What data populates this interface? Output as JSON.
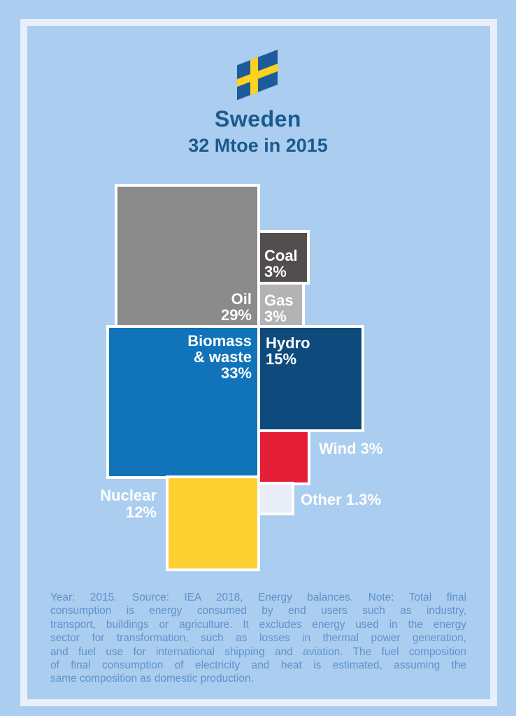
{
  "page": {
    "background_color": "#abcdf0",
    "frame_color": "#e8effb"
  },
  "header": {
    "flag_icon": "sweden-flag-icon",
    "flag_blue": "#1e5b9c",
    "flag_yellow": "#fcd21c",
    "title": "Sweden",
    "subtitle": "32 Mtoe in 2015",
    "title_color": "#1a5a8c"
  },
  "chart_data": {
    "type": "treemap",
    "title": "Sweden",
    "subtitle": "32 Mtoe in 2015",
    "total_value": 32,
    "unit": "Mtoe",
    "year": 2015,
    "block_border_color": "#ffffff",
    "label_text_color": "#ffffff",
    "series": [
      {
        "name": "Oil",
        "value_pct": 29,
        "color": "#8b8b8b",
        "label_lines": [
          "Oil",
          "29%"
        ],
        "label_position": "inside-bottom-right"
      },
      {
        "name": "Coal",
        "value_pct": 3,
        "color": "#524e4f",
        "label_lines": [
          "Coal",
          "3%"
        ],
        "label_position": "inside-bottom-left"
      },
      {
        "name": "Gas",
        "value_pct": 3,
        "color": "#b4b3b3",
        "label_lines": [
          "Gas",
          "3%"
        ],
        "label_position": "inside-bottom-left"
      },
      {
        "name": "Biomass & waste",
        "value_pct": 33,
        "color": "#1173b9",
        "label_lines": [
          "Biomass",
          "& waste",
          "33%"
        ],
        "label_position": "inside-top-right"
      },
      {
        "name": "Hydro",
        "value_pct": 15,
        "color": "#0f4a7d",
        "label_lines": [
          "Hydro",
          "15%"
        ],
        "label_position": "inside-top-left"
      },
      {
        "name": "Wind",
        "value_pct": 3,
        "color": "#e41f37",
        "label_lines": [
          "Wind 3%"
        ],
        "label_position": "outside-right"
      },
      {
        "name": "Nuclear",
        "value_pct": 12,
        "color": "#fdd032",
        "label_lines": [
          "Nuclear",
          "12%"
        ],
        "label_position": "outside-left"
      },
      {
        "name": "Other",
        "value_pct": 1.3,
        "color": "#e9edf7",
        "label_lines": [
          "Other 1.3%"
        ],
        "label_position": "outside-right"
      }
    ]
  },
  "footer": {
    "text_color": "#5f93c8",
    "lines": [
      "Year: 2015. Source: IEA 2018, Energy balances. Note: Total final",
      "consumption is energy consumed by end users such as industry,",
      "transport, buildings or agriculture. It excludes energy used in the energy",
      "sector for transformation, such as losses in thermal power generation,",
      "and fuel use for international shipping and aviation. The fuel composition",
      "of final consumption of electricity and heat is estimated, assuming the",
      "same composition as domestic production."
    ]
  }
}
